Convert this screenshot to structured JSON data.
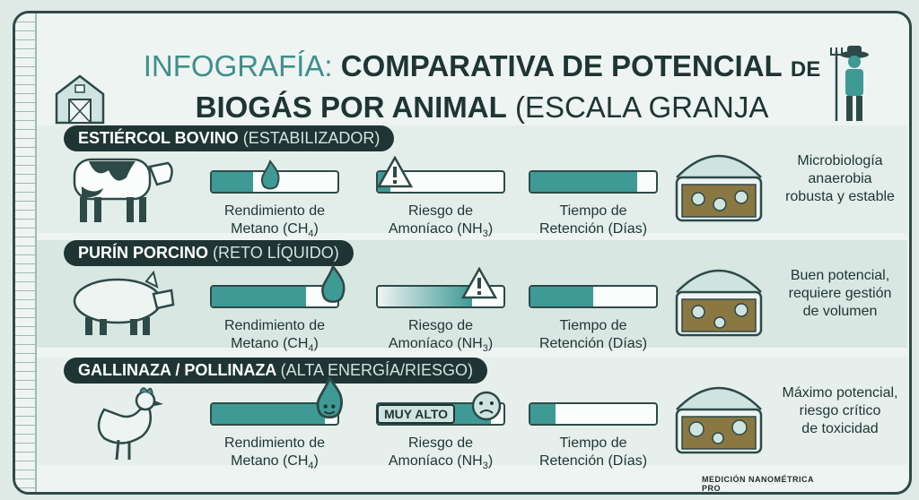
{
  "title": {
    "prefix": "INFOGRAFÍA:",
    "main1": "COMPARATIVA DE POTENCIAL",
    "de": "DE",
    "main2": "BIOGÁS POR ANIMAL",
    "suffix": "(ESCALA GRANJA PEQUEÑA/MEDIA)."
  },
  "colors": {
    "accent": "#3f9a96",
    "dark": "#1f3533",
    "light": "#eef4f2"
  },
  "labels": {
    "metano": "Rendimiento de",
    "metano2": "Metano (CH",
    "metano_sub": "4",
    "riesgo": "Riesgo de",
    "riesgo2": "Amoníaco (NH",
    "riesgo_sub": "3",
    "tiempo": "Tiempo de",
    "tiempo2": "Retención (Días)"
  },
  "sections": [
    {
      "name": "ESTIÉRCOL BOVINO",
      "tag": "(ESTABILIZADOR)",
      "animal_icon": "cow-icon",
      "methane_fraction": 0.33,
      "ammonia_fraction": 0.1,
      "retention_fraction": 0.85,
      "note1": "Microbiología",
      "note2": "anaerobia",
      "note3": "robusta y estable"
    },
    {
      "name": "PURÍN PORCINO",
      "tag": "(RETO LÍQUIDO)",
      "animal_icon": "pig-icon",
      "methane_fraction": 0.75,
      "ammonia_fraction": 0.75,
      "retention_fraction": 0.5,
      "note1": "Buen potencial,",
      "note2": "requiere gestión",
      "note3": "de volumen"
    },
    {
      "name": "GALLINAZA / POLLINAZA",
      "tag": "(ALTA ENERGÍA/RIESGO)",
      "animal_icon": "chicken-icon",
      "methane_fraction": 0.9,
      "ammonia_fraction": 0.9,
      "ammonia_badge": "MUY ALTO",
      "retention_fraction": 0.2,
      "note1": "Máximo potencial,",
      "note2": "riesgo crítico",
      "note3": "de toxicidad"
    }
  ],
  "footer": "MEDICIÓN NANOMÉTRICA PRO"
}
